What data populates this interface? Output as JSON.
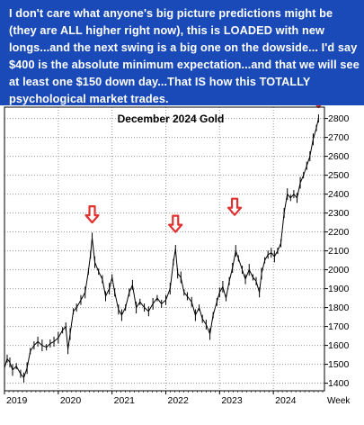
{
  "banner": {
    "text": "I don't care what anyone's big picture predictions might be (they are ALL higher right now), this is LOADED with new longs...and the next swing is a big one on the dowside... I'd say $400 is the absolute minimum expectation...and that we will see at least one $150 down day...That IS how this TOTALLY psychological market trades.",
    "color": "#1a4ab8"
  },
  "chart_data": {
    "type": "line",
    "title": "December 2024 Gold",
    "xlabel": "Week",
    "ylabel": "",
    "x_ticks": [
      "2019",
      "2020",
      "2021",
      "2022",
      "2023",
      "2024"
    ],
    "y_ticks": [
      1400,
      1500,
      1600,
      1700,
      1800,
      1900,
      2000,
      2100,
      2200,
      2300,
      2400,
      2500,
      2600,
      2700,
      2800
    ],
    "xlim": [
      2019.0,
      2024.95
    ],
    "ylim": [
      1360,
      2860
    ],
    "grid": true,
    "series": [
      {
        "color": "#000000",
        "points": [
          [
            2019.0,
            1480
          ],
          [
            2019.05,
            1530
          ],
          [
            2019.1,
            1510
          ],
          [
            2019.15,
            1470
          ],
          [
            2019.22,
            1490
          ],
          [
            2019.3,
            1450
          ],
          [
            2019.36,
            1430
          ],
          [
            2019.42,
            1480
          ],
          [
            2019.48,
            1570
          ],
          [
            2019.55,
            1600
          ],
          [
            2019.62,
            1620
          ],
          [
            2019.7,
            1600
          ],
          [
            2019.78,
            1590
          ],
          [
            2019.85,
            1610
          ],
          [
            2019.92,
            1620
          ],
          [
            2020.0,
            1640
          ],
          [
            2020.08,
            1680
          ],
          [
            2020.14,
            1700
          ],
          [
            2020.18,
            1580
          ],
          [
            2020.22,
            1660
          ],
          [
            2020.28,
            1780
          ],
          [
            2020.34,
            1800
          ],
          [
            2020.42,
            1840
          ],
          [
            2020.5,
            1880
          ],
          [
            2020.56,
            1990
          ],
          [
            2020.6,
            2080
          ],
          [
            2020.63,
            2170
          ],
          [
            2020.68,
            2040
          ],
          [
            2020.75,
            1990
          ],
          [
            2020.82,
            1950
          ],
          [
            2020.88,
            1860
          ],
          [
            2020.95,
            1900
          ],
          [
            2021.0,
            1960
          ],
          [
            2021.05,
            1880
          ],
          [
            2021.12,
            1790
          ],
          [
            2021.18,
            1760
          ],
          [
            2021.25,
            1800
          ],
          [
            2021.32,
            1880
          ],
          [
            2021.38,
            1920
          ],
          [
            2021.45,
            1800
          ],
          [
            2021.52,
            1830
          ],
          [
            2021.6,
            1800
          ],
          [
            2021.68,
            1780
          ],
          [
            2021.76,
            1820
          ],
          [
            2021.84,
            1850
          ],
          [
            2021.92,
            1820
          ],
          [
            2022.0,
            1840
          ],
          [
            2022.08,
            1900
          ],
          [
            2022.14,
            2040
          ],
          [
            2022.18,
            2110
          ],
          [
            2022.22,
            1980
          ],
          [
            2022.28,
            1960
          ],
          [
            2022.34,
            1880
          ],
          [
            2022.4,
            1860
          ],
          [
            2022.48,
            1830
          ],
          [
            2022.55,
            1760
          ],
          [
            2022.62,
            1800
          ],
          [
            2022.68,
            1740
          ],
          [
            2022.75,
            1710
          ],
          [
            2022.82,
            1660
          ],
          [
            2022.88,
            1760
          ],
          [
            2022.95,
            1830
          ],
          [
            2023.0,
            1880
          ],
          [
            2023.06,
            1910
          ],
          [
            2023.12,
            1850
          ],
          [
            2023.18,
            1940
          ],
          [
            2023.24,
            2010
          ],
          [
            2023.3,
            2100
          ],
          [
            2023.35,
            2060
          ],
          [
            2023.42,
            2000
          ],
          [
            2023.48,
            1950
          ],
          [
            2023.55,
            2000
          ],
          [
            2023.62,
            1960
          ],
          [
            2023.68,
            1940
          ],
          [
            2023.74,
            1880
          ],
          [
            2023.78,
            1980
          ],
          [
            2023.84,
            2050
          ],
          [
            2023.9,
            2080
          ],
          [
            2023.96,
            2090
          ],
          [
            2024.02,
            2070
          ],
          [
            2024.08,
            2100
          ],
          [
            2024.14,
            2140
          ],
          [
            2024.2,
            2300
          ],
          [
            2024.26,
            2400
          ],
          [
            2024.32,
            2380
          ],
          [
            2024.38,
            2400
          ],
          [
            2024.44,
            2380
          ],
          [
            2024.5,
            2460
          ],
          [
            2024.56,
            2500
          ],
          [
            2024.62,
            2550
          ],
          [
            2024.68,
            2600
          ],
          [
            2024.74,
            2690
          ],
          [
            2024.8,
            2750
          ],
          [
            2024.84,
            2800
          ]
        ]
      }
    ],
    "annotations": [
      {
        "type": "arrow-down",
        "x": 2020.63,
        "y": 2250,
        "color": "#e03030"
      },
      {
        "type": "arrow-down",
        "x": 2022.18,
        "y": 2200,
        "color": "#e03030"
      },
      {
        "type": "arrow-down",
        "x": 2023.28,
        "y": 2290,
        "color": "#e03030"
      },
      {
        "type": "arrow-down",
        "x": 2024.84,
        "y": 2860,
        "color": "#e03030"
      }
    ]
  }
}
